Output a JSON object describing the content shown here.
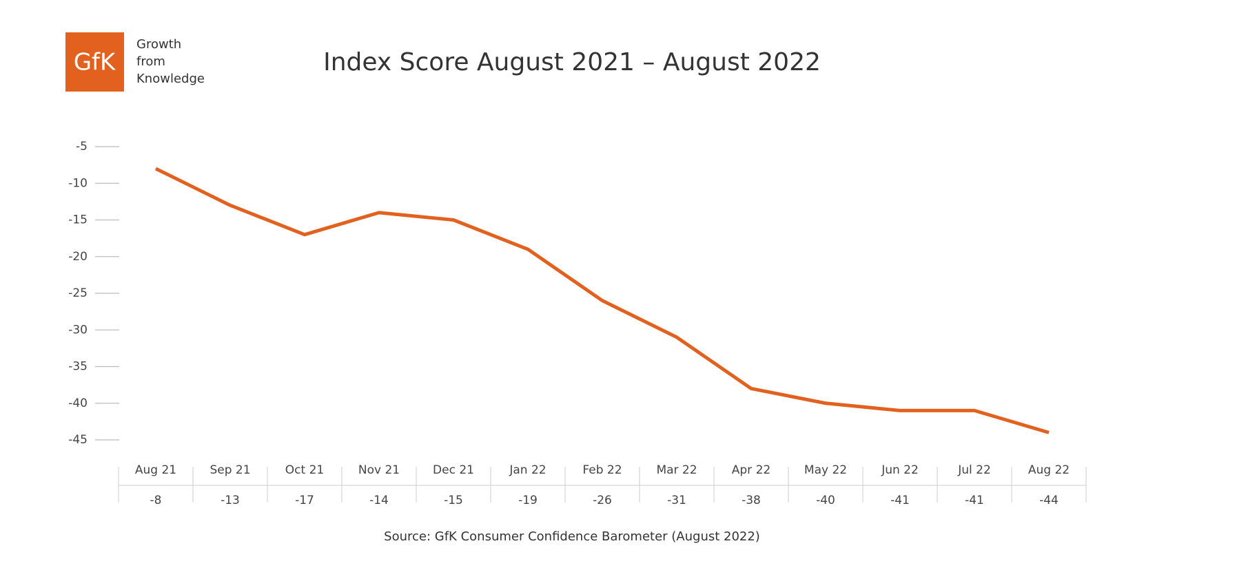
{
  "logo": {
    "mark": "GfK",
    "tagline": [
      "Growth",
      "from",
      "Knowledge"
    ]
  },
  "chart_data": {
    "type": "line",
    "title": "Index Score August 2021 – August 2022",
    "categories": [
      "Aug 21",
      "Sep 21",
      "Oct 21",
      "Nov 21",
      "Dec 21",
      "Jan 22",
      "Feb 22",
      "Mar 22",
      "Apr 22",
      "May 22",
      "Jun 22",
      "Jul 22",
      "Aug 22"
    ],
    "values": [
      -8,
      -13,
      -17,
      -14,
      -15,
      -19,
      -26,
      -31,
      -38,
      -40,
      -41,
      -41,
      -44
    ],
    "color": "#e2611e",
    "ylim": [
      -45,
      -5
    ],
    "yticks": [
      -5,
      -10,
      -15,
      -20,
      -25,
      -30,
      -35,
      -40,
      -45
    ],
    "source": "Source: GfK Consumer Confidence Barometer (August 2022)"
  }
}
